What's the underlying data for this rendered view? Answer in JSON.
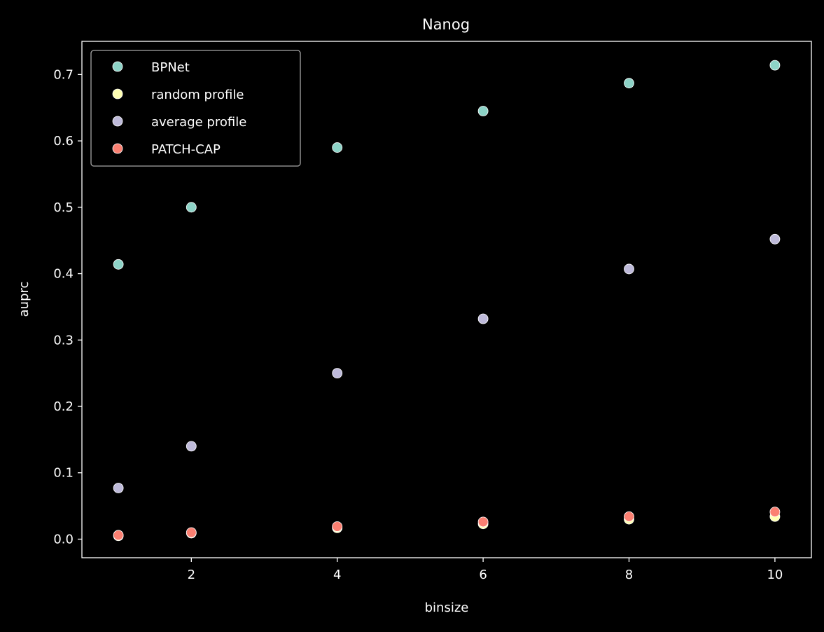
{
  "chart_data": {
    "type": "scatter",
    "title": "Nanog",
    "xlabel": "binsize",
    "ylabel": "auprc",
    "xlim": [
      0.5,
      10.5
    ],
    "ylim": [
      -0.028,
      0.75
    ],
    "xticks": [
      2,
      4,
      6,
      8,
      10
    ],
    "xtick_labels": [
      "2",
      "4",
      "6",
      "8",
      "10"
    ],
    "yticks": [
      0.0,
      0.1,
      0.2,
      0.3,
      0.4,
      0.5,
      0.6,
      0.7
    ],
    "ytick_labels": [
      "0.0",
      "0.1",
      "0.2",
      "0.3",
      "0.4",
      "0.5",
      "0.6",
      "0.7"
    ],
    "grid": false,
    "legend_position": "top-left",
    "background": "#000000",
    "foreground": "#ffffff",
    "series": [
      {
        "name": "BPNet",
        "color": "#8dd3c7",
        "x": [
          1,
          2,
          4,
          6,
          8,
          10
        ],
        "y": [
          0.414,
          0.5,
          0.59,
          0.645,
          0.687,
          0.714
        ]
      },
      {
        "name": "random profile",
        "color": "#ffffb3",
        "x": [
          1,
          2,
          4,
          6,
          8,
          10
        ],
        "y": [
          0.005,
          0.009,
          0.017,
          0.023,
          0.03,
          0.034
        ]
      },
      {
        "name": "average profile",
        "color": "#bebada",
        "x": [
          1,
          2,
          4,
          6,
          8,
          10
        ],
        "y": [
          0.077,
          0.14,
          0.25,
          0.332,
          0.407,
          0.452
        ]
      },
      {
        "name": "PATCH-CAP",
        "color": "#fb8072",
        "x": [
          1,
          2,
          4,
          6,
          8,
          10
        ],
        "y": [
          0.006,
          0.01,
          0.019,
          0.026,
          0.034,
          0.041
        ]
      }
    ]
  }
}
